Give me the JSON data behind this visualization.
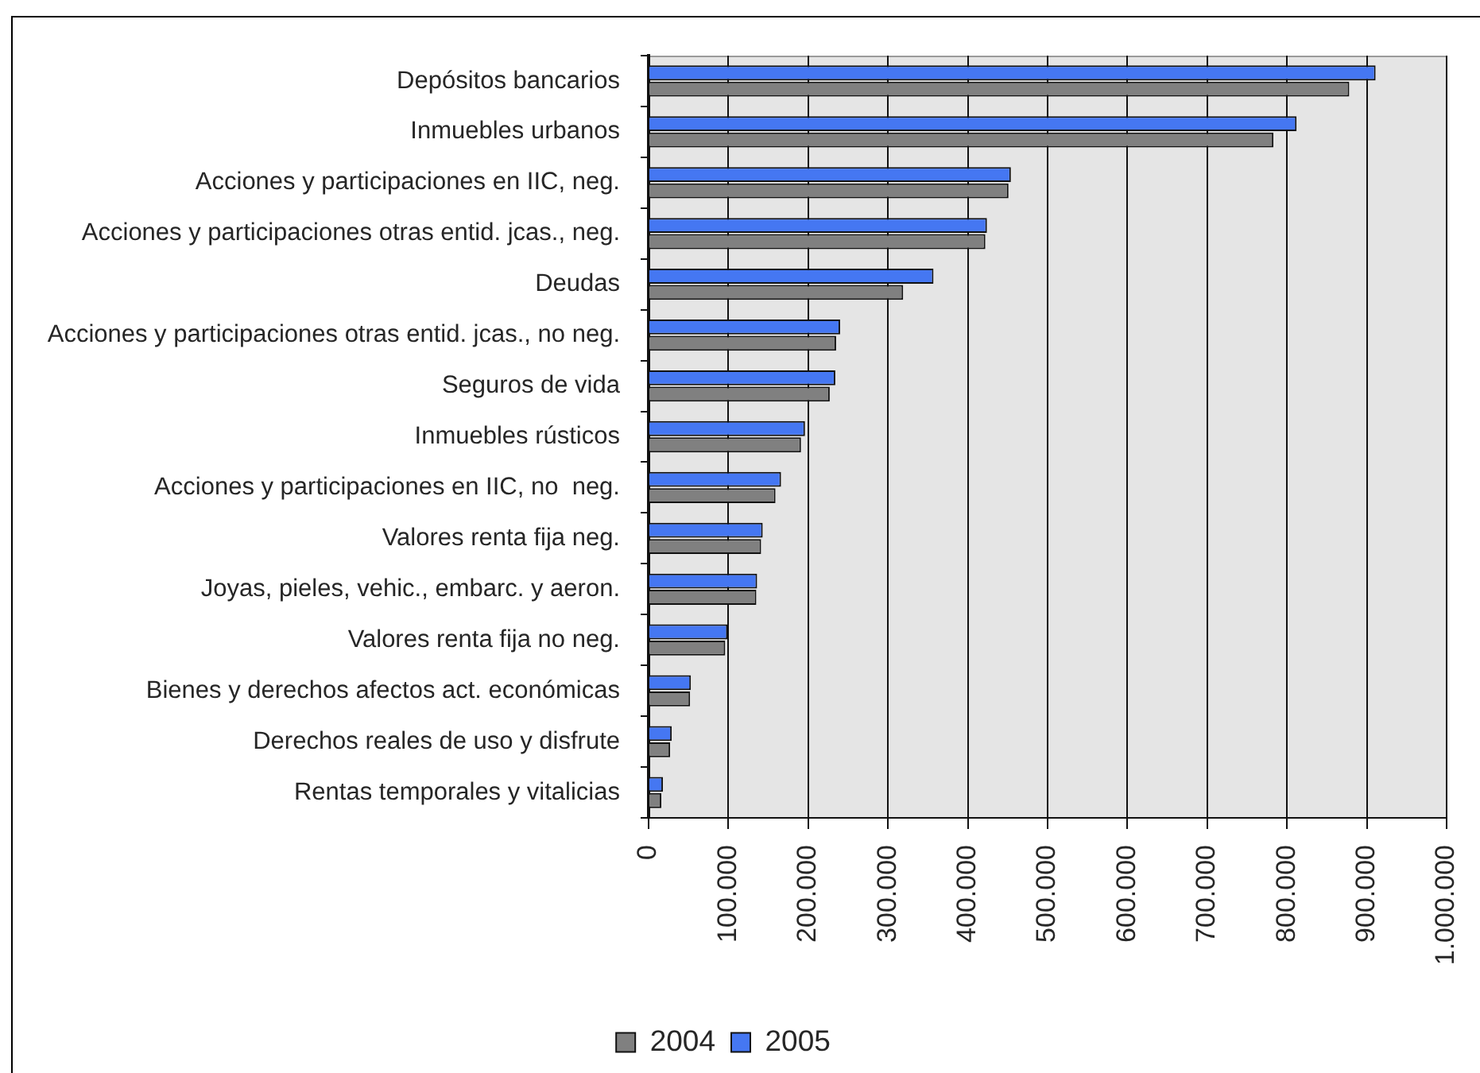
{
  "chart_data": {
    "type": "bar",
    "orientation": "horizontal",
    "categories": [
      "Depósitos bancarios",
      "Inmuebles urbanos",
      "Acciones y participaciones en IIC, neg.",
      "Acciones y participaciones otras entid. jcas., neg.",
      "Deudas",
      "Acciones y participaciones otras entid. jcas., no neg.",
      "Seguros de vida",
      "Inmuebles rústicos",
      "Acciones y participaciones en IIC, no  neg.",
      "Valores renta fija neg.",
      "Joyas, pieles, vehic., embarc. y aeron.",
      "Valores renta fija no neg.",
      "Bienes y derechos afectos act. económicas",
      "Derechos reales de uso y disfrute",
      "Rentas temporales y vitalicias"
    ],
    "series": [
      {
        "name": "2004",
        "color": "#808080",
        "values": [
          878000,
          783000,
          451000,
          422000,
          319000,
          235000,
          227000,
          191000,
          159000,
          141000,
          135000,
          96000,
          52000,
          27000,
          16000
        ]
      },
      {
        "name": "2005",
        "color": "#4577f2",
        "values": [
          911000,
          812000,
          454000,
          424000,
          357000,
          240000,
          234000,
          196000,
          166000,
          143000,
          136000,
          99000,
          53000,
          29000,
          18000
        ]
      }
    ],
    "xlim": [
      0,
      1000000
    ],
    "xticks": [
      0,
      {
        "value": 100000,
        "label": "100.000"
      },
      {
        "value": 200000,
        "label": "200.000"
      },
      {
        "value": 300000,
        "label": "300.000"
      },
      {
        "value": 400000,
        "label": "400.000"
      },
      {
        "value": 500000,
        "label": "500.000"
      },
      {
        "value": 600000,
        "label": "600.000"
      },
      {
        "value": 700000,
        "label": "700.000"
      },
      {
        "value": 800000,
        "label": "800.000"
      },
      {
        "value": 900000,
        "label": "900.000"
      },
      {
        "value": 1000000,
        "label": "1.000.000"
      }
    ],
    "grid": "x",
    "legend": "bottom"
  }
}
